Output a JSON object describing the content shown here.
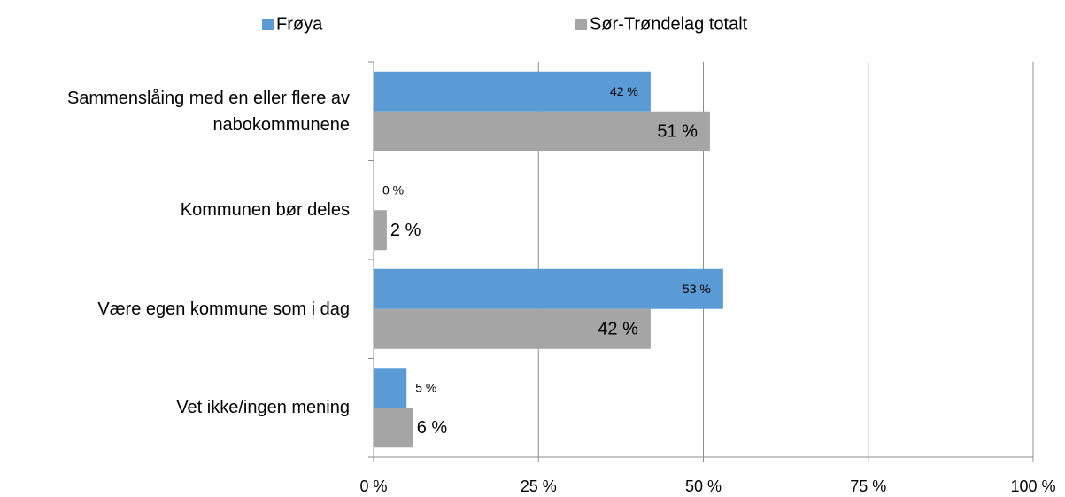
{
  "chart_data": {
    "type": "hbar",
    "categories": [
      "Sammenslåing med en eller flere av nabokommunene",
      "Kommunen bør deles",
      "Være egen kommune som i dag",
      "Vet ikke/ingen mening"
    ],
    "series": [
      {
        "name": "Frøya",
        "color": "#5b9bd5",
        "values": [
          42,
          0,
          53,
          5
        ],
        "value_labels": [
          "42 %",
          "0 %",
          "53 %",
          "5 %"
        ]
      },
      {
        "name": "Sør-Trøndelag totalt",
        "color": "#a5a5a5",
        "values": [
          51,
          2,
          42,
          6
        ],
        "value_labels": [
          "51 %",
          "2 %",
          "42 %",
          "6 %"
        ]
      }
    ],
    "xlim": [
      0,
      100
    ],
    "xticks": [
      {
        "value": 0,
        "label": "0 %"
      },
      {
        "value": 25,
        "label": "25 %"
      },
      {
        "value": 50,
        "label": "50 %"
      },
      {
        "value": 75,
        "label": "75 %"
      },
      {
        "value": 100,
        "label": "100 %"
      }
    ],
    "grid": true,
    "legend": "top"
  }
}
